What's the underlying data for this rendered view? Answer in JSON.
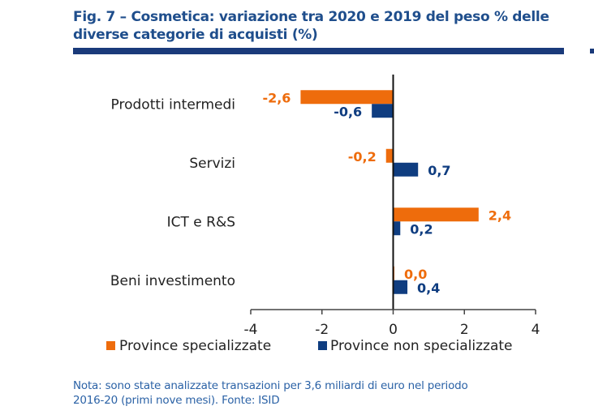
{
  "title_line1": "Fig. 7 – Cosmetica: variazione tra 2020 e 2019 del peso % delle",
  "title_line2": "diverse categorie di acquisti (%)",
  "note_line1": "Nota: sono state analizzate transazioni per 3,6 miliardi di euro nel periodo",
  "note_line2": "2016-20 (primi nove mesi). Fonte: ISID",
  "colors": {
    "specializzate": "#ee6c0c",
    "non_specializzate": "#0f3d80",
    "title": "#1f4e8c",
    "rule": "#1a3a7a"
  },
  "chart_data": {
    "type": "bar",
    "orientation": "horizontal",
    "title": "Fig. 7 – Cosmetica: variazione tra 2020 e 2019 del peso % delle diverse categorie di acquisti (%)",
    "categories": [
      "Prodotti intermedi",
      "Servizi",
      "ICT e R&S",
      "Beni investimento"
    ],
    "series": [
      {
        "name": "Province specializzate",
        "values": [
          -2.6,
          -0.2,
          2.4,
          0.0
        ],
        "labels": [
          "-2,6",
          "-0,2",
          "2,4",
          "0,0"
        ]
      },
      {
        "name": "Province non specializzate",
        "values": [
          -0.6,
          0.7,
          0.2,
          0.4
        ],
        "labels": [
          "-0,6",
          "0,7",
          "0,2",
          "0,4"
        ]
      }
    ],
    "xlim": [
      -4,
      4
    ],
    "xticks": [
      -4,
      -2,
      0,
      2,
      4
    ],
    "xtick_labels": [
      "-4",
      "-2",
      "0",
      "2",
      "4"
    ],
    "xlabel": "",
    "ylabel": "",
    "grid": false,
    "legend_position": "bottom"
  }
}
